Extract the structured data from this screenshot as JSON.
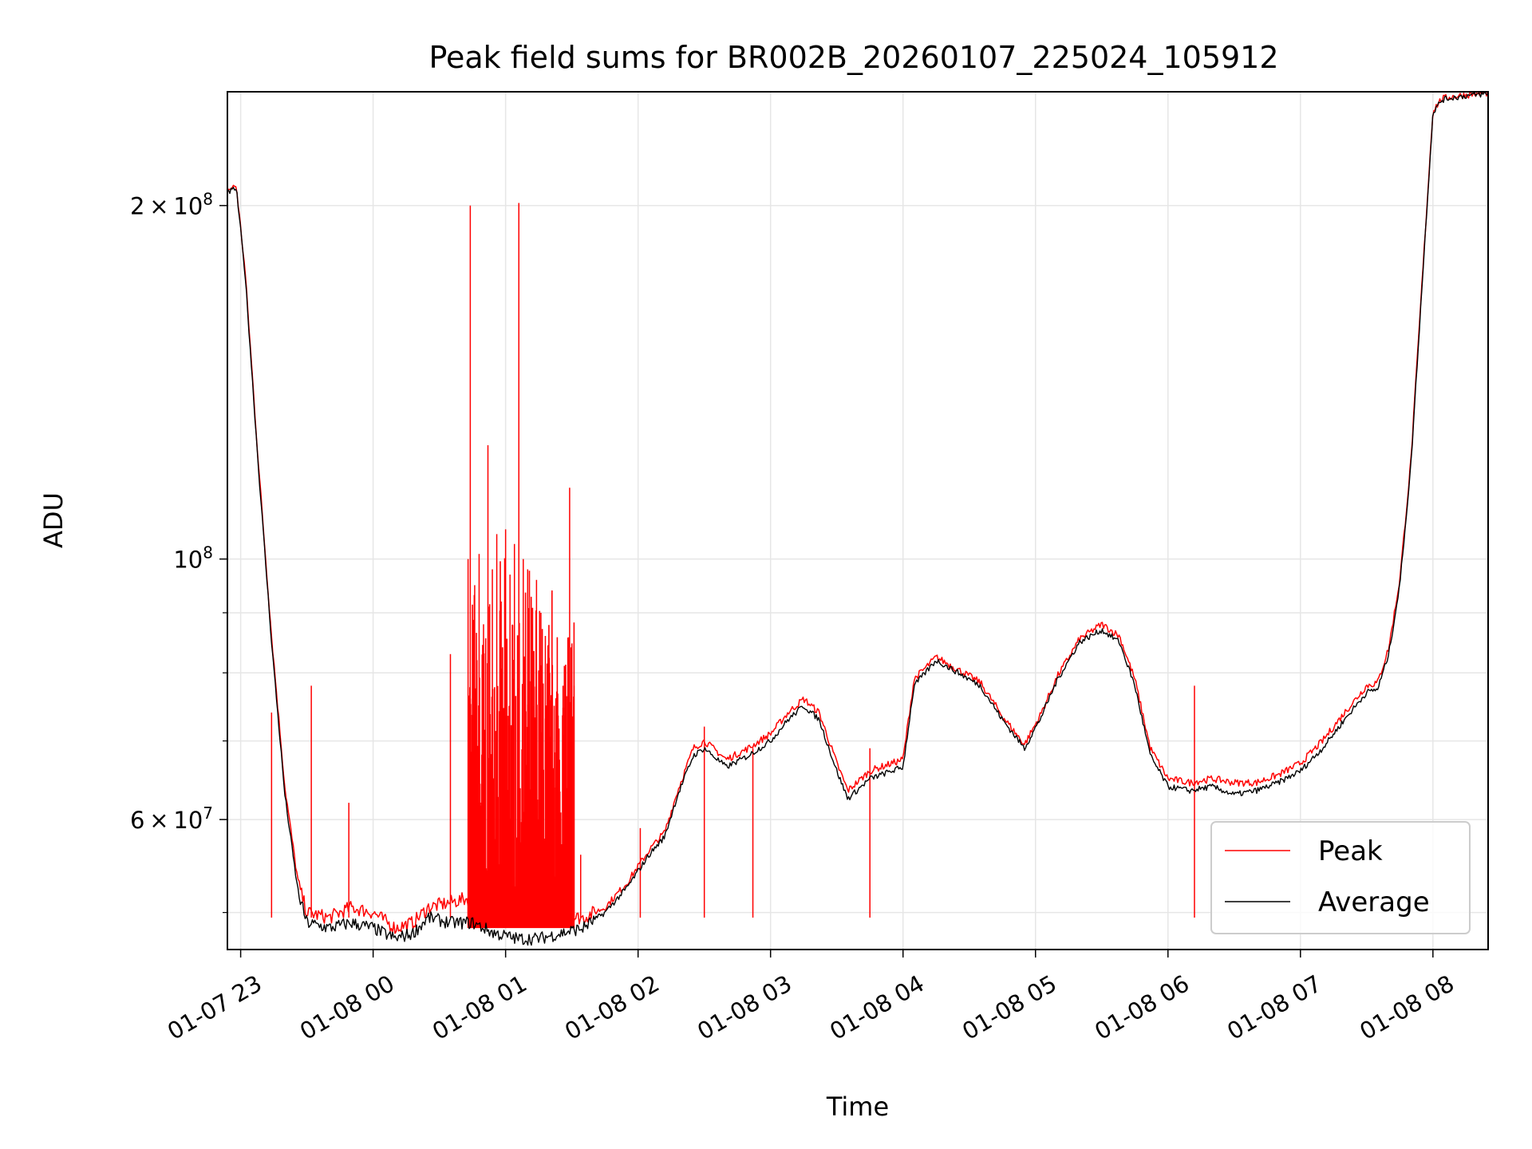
{
  "chart_data": {
    "type": "line",
    "title": "Peak field sums for BR002B_20260107_225024_105912",
    "xlabel": "Time",
    "ylabel": "ADU",
    "yscale": "log",
    "ylim": [
      46500000,
      250000000
    ],
    "xlim": [
      "2026-01-07 22:54",
      "2026-01-08 08:25"
    ],
    "grid": true,
    "legend_position": "lower-right",
    "x_ticks": [
      "01-07 23",
      "01-08 00",
      "01-08 01",
      "01-08 02",
      "01-08 03",
      "01-08 04",
      "01-08 05",
      "01-08 06",
      "01-08 07",
      "01-08 08"
    ],
    "y_major_ticks": [
      {
        "value": 60000000,
        "mantissa": "6",
        "base": "10",
        "exp": "7"
      },
      {
        "value": 100000000,
        "mantissa": "",
        "base": "10",
        "exp": "8"
      },
      {
        "value": 200000000,
        "mantissa": "2",
        "base": "10",
        "exp": "8"
      }
    ],
    "y_minor_ticks": [
      50000000,
      70000000,
      80000000,
      90000000
    ],
    "series": [
      {
        "name": "Average",
        "color": "#000000",
        "x": [
          "2026-01-07 22:54",
          "2026-01-07 22:58",
          "2026-01-07 23:02",
          "2026-01-07 23:08",
          "2026-01-07 23:14",
          "2026-01-07 23:20",
          "2026-01-07 23:26",
          "2026-01-07 23:30",
          "2026-01-07 23:40",
          "2026-01-07 23:50",
          "2026-01-08 00:00",
          "2026-01-08 00:10",
          "2026-01-08 00:18",
          "2026-01-08 00:25",
          "2026-01-08 00:35",
          "2026-01-08 00:45",
          "2026-01-08 00:55",
          "2026-01-08 01:05",
          "2026-01-08 01:15",
          "2026-01-08 01:25",
          "2026-01-08 01:35",
          "2026-01-08 01:45",
          "2026-01-08 01:55",
          "2026-01-08 02:05",
          "2026-01-08 02:12",
          "2026-01-08 02:18",
          "2026-01-08 02:25",
          "2026-01-08 02:30",
          "2026-01-08 02:40",
          "2026-01-08 02:50",
          "2026-01-08 03:00",
          "2026-01-08 03:08",
          "2026-01-08 03:15",
          "2026-01-08 03:22",
          "2026-01-08 03:30",
          "2026-01-08 03:35",
          "2026-01-08 03:45",
          "2026-01-08 03:55",
          "2026-01-08 04:00",
          "2026-01-08 04:05",
          "2026-01-08 04:15",
          "2026-01-08 04:25",
          "2026-01-08 04:35",
          "2026-01-08 04:45",
          "2026-01-08 04:55",
          "2026-01-08 05:02",
          "2026-01-08 05:10",
          "2026-01-08 05:20",
          "2026-01-08 05:30",
          "2026-01-08 05:38",
          "2026-01-08 05:45",
          "2026-01-08 05:52",
          "2026-01-08 06:00",
          "2026-01-08 06:10",
          "2026-01-08 06:20",
          "2026-01-08 06:30",
          "2026-01-08 06:40",
          "2026-01-08 06:50",
          "2026-01-08 07:00",
          "2026-01-08 07:10",
          "2026-01-08 07:20",
          "2026-01-08 07:30",
          "2026-01-08 07:35",
          "2026-01-08 07:40",
          "2026-01-08 07:45",
          "2026-01-08 07:50",
          "2026-01-08 07:55",
          "2026-01-08 08:00",
          "2026-01-08 08:04",
          "2026-01-08 08:08",
          "2026-01-08 08:15",
          "2026-01-08 08:25"
        ],
        "y": [
          205000000,
          207000000,
          175000000,
          120000000,
          85000000,
          63000000,
          52000000,
          49000000,
          48500000,
          49000000,
          48500000,
          47500000,
          48000000,
          49500000,
          49000000,
          49000000,
          48000000,
          47500000,
          47500000,
          48000000,
          48500000,
          50000000,
          52500000,
          56000000,
          58000000,
          63000000,
          68000000,
          69000000,
          66500000,
          68000000,
          70000000,
          73000000,
          75000000,
          73000000,
          66000000,
          62500000,
          65000000,
          66000000,
          66500000,
          78000000,
          82000000,
          80000000,
          78000000,
          73000000,
          69000000,
          73000000,
          79000000,
          85000000,
          87000000,
          85000000,
          78000000,
          68000000,
          64000000,
          63500000,
          64000000,
          63000000,
          63500000,
          64500000,
          66000000,
          69000000,
          73000000,
          77000000,
          77500000,
          83000000,
          95000000,
          120000000,
          170000000,
          240000000,
          246000000,
          247000000,
          248000000,
          249000000
        ]
      },
      {
        "name": "Peak",
        "color": "#ff0000",
        "x": [
          "2026-01-07 22:54",
          "2026-01-07 22:58",
          "2026-01-07 23:02",
          "2026-01-07 23:08",
          "2026-01-07 23:14",
          "2026-01-07 23:20",
          "2026-01-07 23:26",
          "2026-01-07 23:30",
          "2026-01-07 23:40",
          "2026-01-07 23:50",
          "2026-01-08 00:00",
          "2026-01-08 00:10",
          "2026-01-08 00:18",
          "2026-01-08 00:25",
          "2026-01-08 00:35",
          "2026-01-08 00:45",
          "2026-01-08 00:55",
          "2026-01-08 01:05",
          "2026-01-08 01:15",
          "2026-01-08 01:25",
          "2026-01-08 01:35",
          "2026-01-08 01:45",
          "2026-01-08 01:55",
          "2026-01-08 02:05",
          "2026-01-08 02:12",
          "2026-01-08 02:18",
          "2026-01-08 02:25",
          "2026-01-08 02:30",
          "2026-01-08 02:40",
          "2026-01-08 02:50",
          "2026-01-08 03:00",
          "2026-01-08 03:08",
          "2026-01-08 03:15",
          "2026-01-08 03:22",
          "2026-01-08 03:30",
          "2026-01-08 03:35",
          "2026-01-08 03:45",
          "2026-01-08 03:55",
          "2026-01-08 04:00",
          "2026-01-08 04:05",
          "2026-01-08 04:15",
          "2026-01-08 04:25",
          "2026-01-08 04:35",
          "2026-01-08 04:45",
          "2026-01-08 04:55",
          "2026-01-08 05:02",
          "2026-01-08 05:10",
          "2026-01-08 05:20",
          "2026-01-08 05:30",
          "2026-01-08 05:38",
          "2026-01-08 05:45",
          "2026-01-08 05:52",
          "2026-01-08 06:00",
          "2026-01-08 06:10",
          "2026-01-08 06:20",
          "2026-01-08 06:30",
          "2026-01-08 06:40",
          "2026-01-08 06:50",
          "2026-01-08 07:00",
          "2026-01-08 07:10",
          "2026-01-08 07:20",
          "2026-01-08 07:30",
          "2026-01-08 07:35",
          "2026-01-08 07:40",
          "2026-01-08 07:45",
          "2026-01-08 07:50",
          "2026-01-08 07:55",
          "2026-01-08 08:00",
          "2026-01-08 08:04",
          "2026-01-08 08:08",
          "2026-01-08 08:15",
          "2026-01-08 08:25"
        ],
        "y": [
          206000000,
          208000000,
          176000000,
          121000000,
          86000000,
          64000000,
          53000000,
          50000000,
          49500000,
          50500000,
          50000000,
          48500000,
          49000000,
          50500000,
          51000000,
          51500000,
          50500000,
          50000000,
          49500000,
          49500000,
          49500000,
          50500000,
          53000000,
          56500000,
          58500000,
          63500000,
          69000000,
          70000000,
          67500000,
          69000000,
          71000000,
          74000000,
          76000000,
          74000000,
          67000000,
          63500000,
          66000000,
          67000000,
          67500000,
          79000000,
          82500000,
          80500000,
          78500000,
          73500000,
          69500000,
          73500000,
          79500000,
          85500000,
          88000000,
          86000000,
          79000000,
          69000000,
          65000000,
          64500000,
          65000000,
          64500000,
          64500000,
          65500000,
          67000000,
          70000000,
          74000000,
          78000000,
          78500000,
          84000000,
          96000000,
          121000000,
          171000000,
          241000000,
          246500000,
          247500000,
          248500000,
          249500000
        ]
      }
    ],
    "peak_spikes": [
      {
        "x": "2026-01-07 23:14",
        "y": 74000000
      },
      {
        "x": "2026-01-07 23:32",
        "y": 78000000
      },
      {
        "x": "2026-01-07 23:49",
        "y": 62000000
      },
      {
        "x": "2026-01-08 00:35",
        "y": 83000000
      },
      {
        "x": "2026-01-08 00:43",
        "y": 100000000
      },
      {
        "x": "2026-01-08 00:44",
        "y": 200000000
      },
      {
        "x": "2026-01-08 00:46",
        "y": 95000000
      },
      {
        "x": "2026-01-08 00:48",
        "y": 101000000
      },
      {
        "x": "2026-01-08 00:50",
        "y": 88000000
      },
      {
        "x": "2026-01-08 00:52",
        "y": 125000000
      },
      {
        "x": "2026-01-08 00:54",
        "y": 98000000
      },
      {
        "x": "2026-01-08 00:56",
        "y": 105000000
      },
      {
        "x": "2026-01-08 00:58",
        "y": 92000000
      },
      {
        "x": "2026-01-08 01:00",
        "y": 106000000
      },
      {
        "x": "2026-01-08 01:02",
        "y": 97000000
      },
      {
        "x": "2026-01-08 01:04",
        "y": 103000000
      },
      {
        "x": "2026-01-08 01:06",
        "y": 201000000
      },
      {
        "x": "2026-01-08 01:08",
        "y": 100000000
      },
      {
        "x": "2026-01-08 01:10",
        "y": 98000000
      },
      {
        "x": "2026-01-08 01:12",
        "y": 88000000
      },
      {
        "x": "2026-01-08 01:14",
        "y": 96000000
      },
      {
        "x": "2026-01-08 01:16",
        "y": 90000000
      },
      {
        "x": "2026-01-08 01:18",
        "y": 86000000
      },
      {
        "x": "2026-01-08 01:20",
        "y": 80000000
      },
      {
        "x": "2026-01-08 01:22",
        "y": 75000000
      },
      {
        "x": "2026-01-08 01:24",
        "y": 70000000
      },
      {
        "x": "2026-01-08 01:26",
        "y": 78000000
      },
      {
        "x": "2026-01-08 01:29",
        "y": 115000000
      },
      {
        "x": "2026-01-08 01:31",
        "y": 78000000
      },
      {
        "x": "2026-01-08 01:34",
        "y": 56000000
      },
      {
        "x": "2026-01-08 02:01",
        "y": 59000000
      },
      {
        "x": "2026-01-08 02:30",
        "y": 72000000
      },
      {
        "x": "2026-01-08 02:52",
        "y": 69000000
      },
      {
        "x": "2026-01-08 03:45",
        "y": 69000000
      },
      {
        "x": "2026-01-08 06:12",
        "y": 78000000
      }
    ]
  },
  "legend": {
    "items": [
      {
        "label": "Peak",
        "color": "#ff0000"
      },
      {
        "label": "Average",
        "color": "#000000"
      }
    ]
  }
}
